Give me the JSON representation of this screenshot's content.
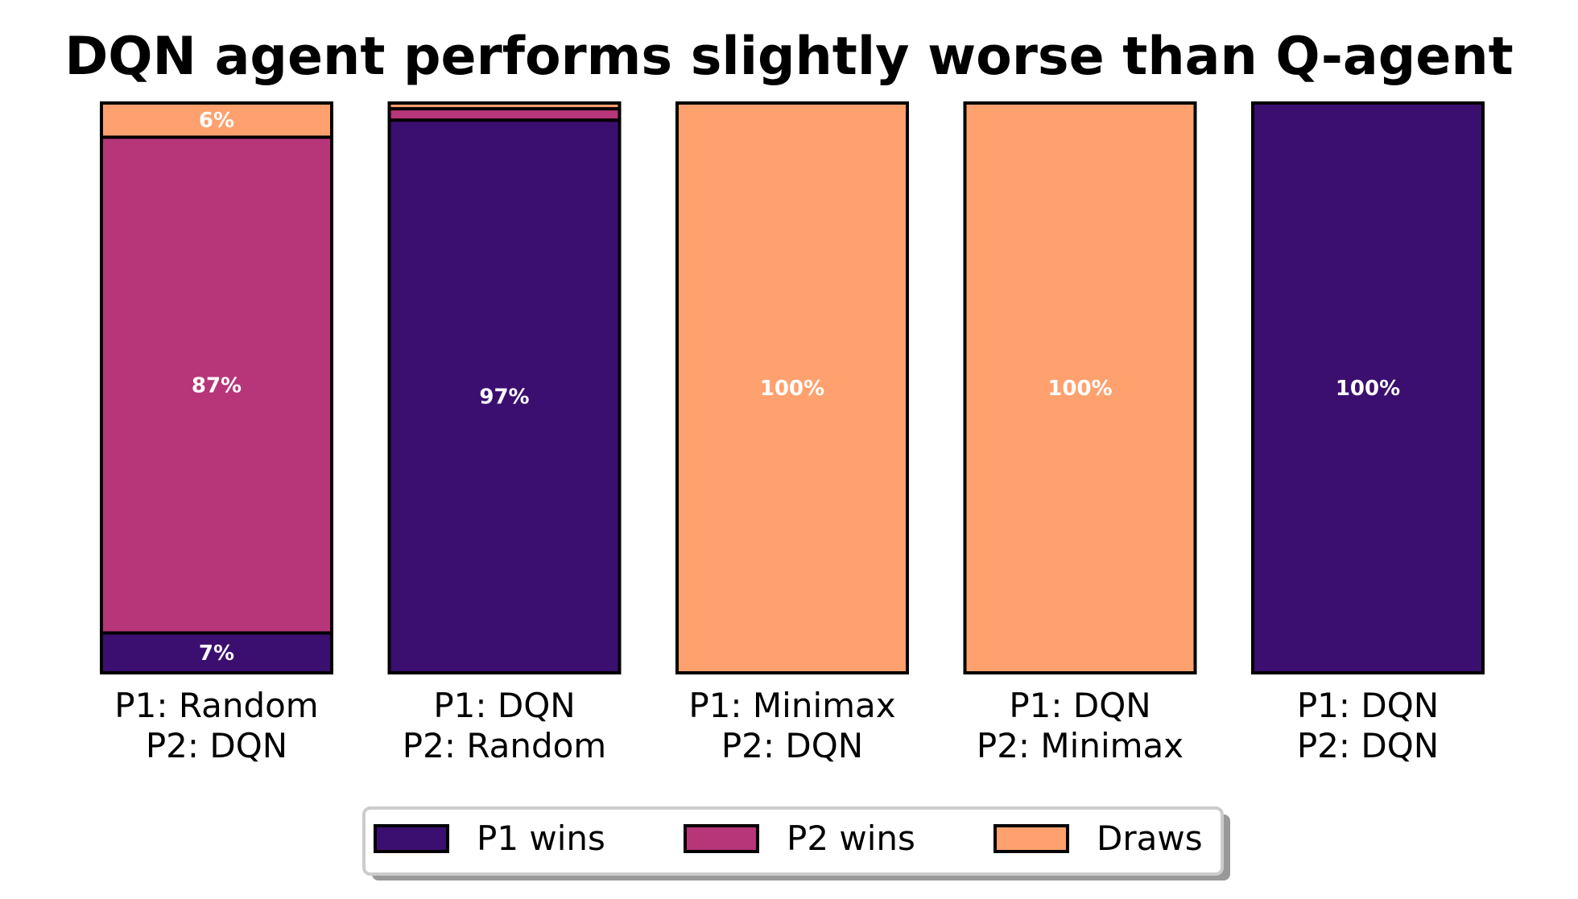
{
  "chart_data": {
    "type": "bar",
    "stacked": true,
    "orientation": "vertical",
    "title": "DQN agent performs slightly worse than Q-agent",
    "xlabel": "",
    "ylabel": "",
    "ylim": [
      0,
      1
    ],
    "grid": false,
    "legend_position": "bottom-center",
    "categories": [
      [
        "P1: Random",
        "P2: DQN"
      ],
      [
        "P1: DQN",
        "P2: Random"
      ],
      [
        "P1: Minimax",
        "P2: DQN"
      ],
      [
        "P1: DQN",
        "P2: Minimax"
      ],
      [
        "P1: DQN",
        "P2: DQN"
      ]
    ],
    "series": [
      {
        "name": "P1 wins",
        "color": "#3b0f6f",
        "values": [
          0.07,
          0.97,
          0.0,
          0.0,
          1.0
        ],
        "labels": [
          "7%",
          "97%",
          "",
          "",
          "100%"
        ]
      },
      {
        "name": "P2 wins",
        "color": "#b63679",
        "values": [
          0.87,
          0.02,
          0.0,
          0.0,
          0.0
        ],
        "labels": [
          "87%",
          "",
          "",
          "",
          ""
        ]
      },
      {
        "name": "Draws",
        "color": "#fea16e",
        "values": [
          0.06,
          0.01,
          1.0,
          1.0,
          0.0
        ],
        "labels": [
          "6%",
          "",
          "100%",
          "100%",
          ""
        ]
      }
    ]
  }
}
